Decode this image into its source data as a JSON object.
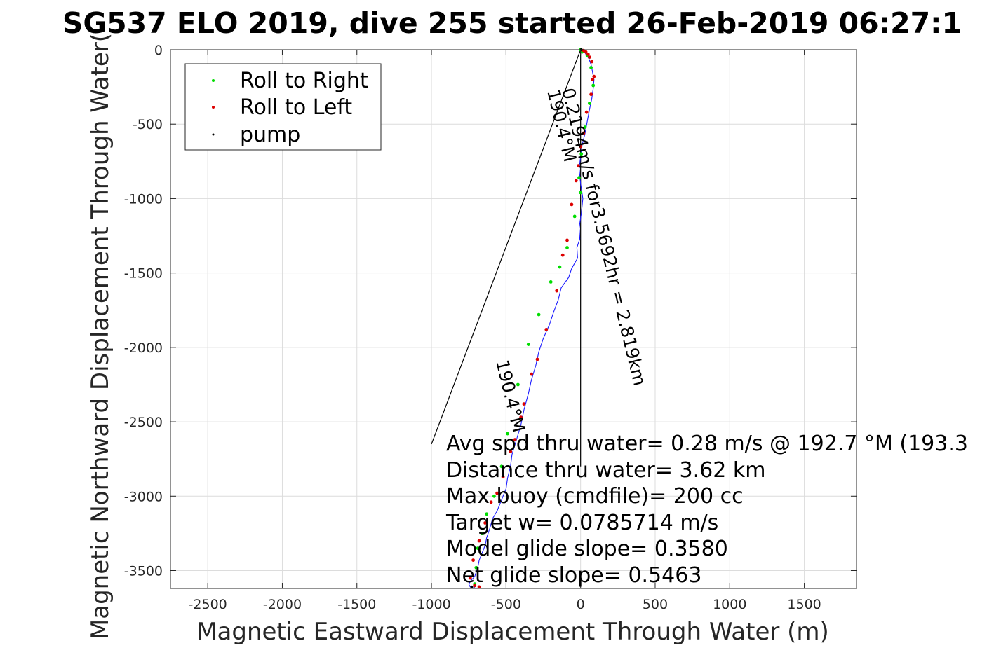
{
  "chart_data": {
    "type": "scatter",
    "title": "SG537 ELO 2019, dive 255 started 26-Feb-2019 06:27:1",
    "xlabel": "Magnetic Eastward Displacement Through Water (m)",
    "ylabel": "Magnetic Northward Displacement Through Water(",
    "xlim": [
      -2750,
      1850
    ],
    "ylim": [
      -3620,
      0
    ],
    "x_ticks": [
      -2500,
      -2000,
      -1500,
      -1000,
      -500,
      0,
      500,
      1000,
      1500
    ],
    "y_ticks": [
      0,
      -500,
      -1000,
      -1500,
      -2000,
      -2500,
      -3000,
      -3500
    ],
    "grid": true,
    "legend_position": "top-left",
    "legend": [
      {
        "label": "Roll to Right",
        "color": "#00dd00"
      },
      {
        "label": "Roll to Left",
        "color": "#dd0000"
      },
      {
        "label": "pump",
        "color": "#000000"
      }
    ],
    "track": {
      "color": "#1a1aff",
      "x": [
        0,
        15,
        30,
        40,
        55,
        70,
        80,
        90,
        85,
        75,
        60,
        45,
        30,
        10,
        0,
        -10,
        0,
        15,
        5,
        -10,
        -5,
        -25,
        -20,
        -60,
        -80,
        -130,
        -150,
        -180,
        -210,
        -250,
        -280,
        -300,
        -330,
        -350,
        -380,
        -400,
        -430,
        -460,
        -470,
        -490,
        -500,
        -520,
        -540,
        -560,
        -590,
        -610,
        -630,
        -640,
        -660,
        -680,
        -690,
        -700,
        -710,
        -730,
        -750,
        -740,
        -720,
        -700
      ],
      "y": [
        0,
        -10,
        -20,
        -40,
        -60,
        -100,
        -150,
        -200,
        -260,
        -330,
        -400,
        -480,
        -560,
        -640,
        -720,
        -800,
        -900,
        -1000,
        -1100,
        -1200,
        -1270,
        -1330,
        -1400,
        -1470,
        -1530,
        -1600,
        -1680,
        -1760,
        -1850,
        -1940,
        -2030,
        -2120,
        -2220,
        -2310,
        -2420,
        -2520,
        -2620,
        -2720,
        -2800,
        -2880,
        -2950,
        -3000,
        -3050,
        -3100,
        -3150,
        -3220,
        -3280,
        -3330,
        -3380,
        -3430,
        -3480,
        -3510,
        -3540,
        -3560,
        -3590,
        -3610,
        -3620,
        -3600
      ]
    },
    "series": [
      {
        "name": "Roll to Right",
        "color": "#00dd00",
        "x": [
          0,
          10,
          45,
          70,
          85,
          60,
          30,
          5,
          -10,
          0,
          -40,
          -90,
          -140,
          -200,
          -280,
          -350,
          -420,
          -490,
          -530,
          -580,
          -630,
          -660,
          -690,
          -700,
          -710
        ],
        "y": [
          0,
          -15,
          -40,
          -120,
          -240,
          -360,
          -520,
          -700,
          -860,
          -960,
          -1120,
          -1330,
          -1460,
          -1560,
          -1780,
          -1980,
          -2250,
          -2580,
          -2800,
          -3000,
          -3120,
          -3250,
          -3350,
          -3480,
          -3590
        ]
      },
      {
        "name": "Roll to Left",
        "color": "#dd0000",
        "x": [
          20,
          35,
          50,
          60,
          75,
          90,
          80,
          70,
          40,
          20,
          0,
          -15,
          -30,
          -60,
          -90,
          -120,
          -160,
          -230,
          -290,
          -330,
          -380,
          -400,
          -440,
          -470,
          -520,
          -560,
          -600,
          -640,
          -680,
          -720,
          -740,
          -710,
          -680
        ],
        "y": [
          -5,
          -15,
          -30,
          -50,
          -80,
          -180,
          -200,
          -300,
          -420,
          -560,
          -650,
          -780,
          -880,
          -1040,
          -1280,
          -1380,
          -1620,
          -1880,
          -2080,
          -2180,
          -2380,
          -2470,
          -2620,
          -2700,
          -2870,
          -2980,
          -3040,
          -3180,
          -3300,
          -3430,
          -3550,
          -3600,
          -3610
        ]
      },
      {
        "name": "pump",
        "color": "#000000",
        "x": [
          5,
          -730
        ],
        "y": [
          0,
          -3610
        ]
      }
    ],
    "reference_lines": [
      {
        "x": [
          0,
          0
        ],
        "y": [
          0,
          -2800
        ]
      },
      {
        "x": [
          0,
          -1000
        ],
        "y": [
          0,
          -2650
        ]
      }
    ],
    "line_labels": [
      "0.2194m/s for3.5692hr = 2.819km",
      "190.4°M",
      "190.4°M"
    ],
    "annotations": [
      "Avg spd thru water=  0.28 m/s @ 192.7 °M (193.3",
      "Distance thru water=  3.62 km",
      "Max buoy (cmdfile)= 200 cc",
      "Target w= 0.0785714 m/s",
      "Model glide slope= 0.3580",
      "Net glide slope= 0.5463"
    ]
  }
}
